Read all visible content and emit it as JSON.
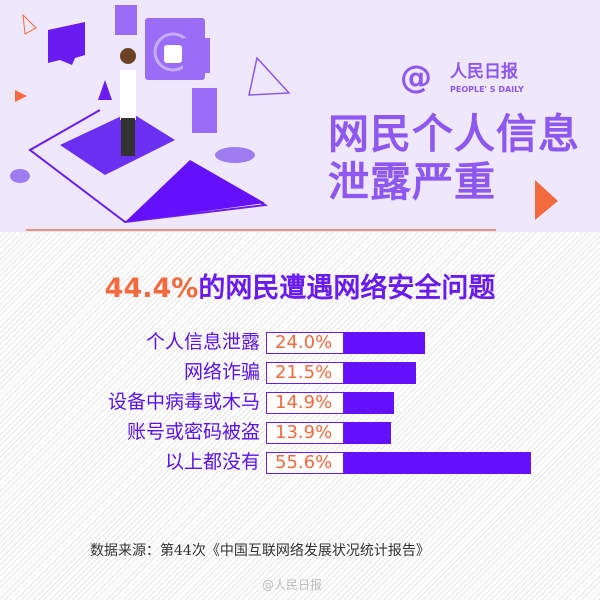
{
  "header": {
    "title_line1": "网民个人信息",
    "title_line2": "泄露严重",
    "logo_at": "@",
    "logo_cn": "人民日报",
    "logo_en": "PEOPLE' S DAILY"
  },
  "colors": {
    "accent": "#6410fa",
    "highlight": "#f26a3e",
    "title": "#8e58f0",
    "background": "#efe7fb"
  },
  "chart_data": {
    "type": "bar",
    "orientation": "horizontal",
    "title_pct": "44.4%",
    "title_rest": "的网民遭遇网络安全问题",
    "categories": [
      "个人信息泄露",
      "网络诈骗",
      "设备中病毒或木马",
      "账号或密码被盗",
      "以上都没有"
    ],
    "values": [
      24.0,
      21.5,
      14.9,
      13.9,
      55.6
    ],
    "labels": [
      "24.0%",
      "21.5%",
      "14.9%",
      "13.9%",
      "55.6%"
    ],
    "unit": "%"
  },
  "footer": {
    "source": "数据来源：第44次《中国互联网络发展状况统计报告》",
    "watermark": "@人民日报"
  }
}
